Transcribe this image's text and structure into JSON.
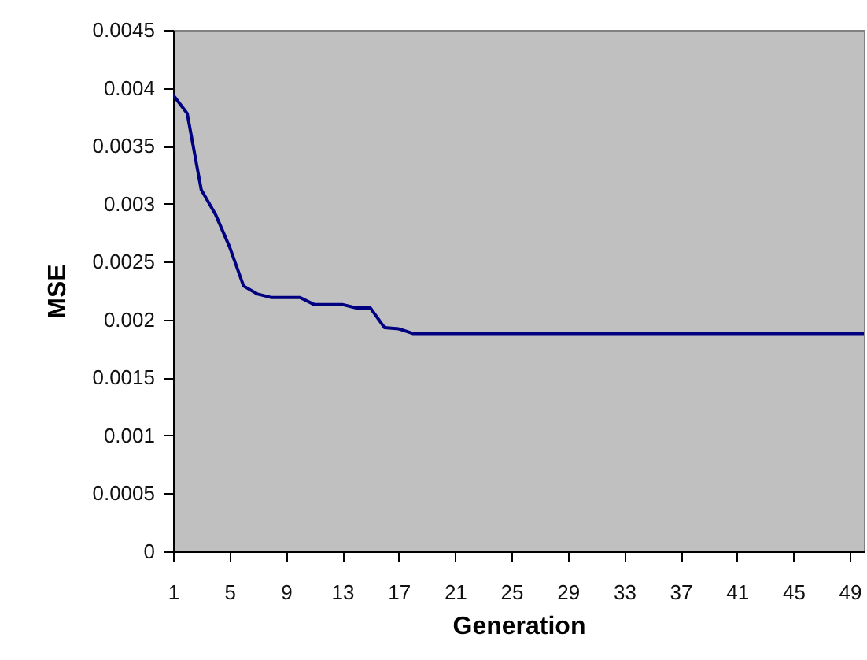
{
  "chart_data": {
    "type": "line",
    "xlabel": "Generation",
    "ylabel": "MSE",
    "x": [
      1,
      2,
      3,
      4,
      5,
      6,
      7,
      8,
      9,
      10,
      11,
      12,
      13,
      14,
      15,
      16,
      17,
      18,
      19,
      20,
      21,
      22,
      23,
      24,
      25,
      26,
      27,
      28,
      29,
      30,
      31,
      32,
      33,
      34,
      35,
      36,
      37,
      38,
      39,
      40,
      41,
      42,
      43,
      44,
      45,
      46,
      47,
      48,
      49,
      50
    ],
    "series": [
      {
        "color": "#000080",
        "values": [
          0.00394,
          0.00378,
          0.00312,
          0.00291,
          0.00263,
          0.00229,
          0.00222,
          0.00219,
          0.00219,
          0.00219,
          0.00213,
          0.00213,
          0.00213,
          0.0021,
          0.0021,
          0.00193,
          0.00192,
          0.00188,
          0.00188,
          0.00188,
          0.00188,
          0.00188,
          0.00188,
          0.00188,
          0.00188,
          0.00188,
          0.00188,
          0.00188,
          0.00188,
          0.00188,
          0.00188,
          0.00188,
          0.00188,
          0.00188,
          0.00188,
          0.00188,
          0.00188,
          0.00188,
          0.00188,
          0.00188,
          0.00188,
          0.00188,
          0.00188,
          0.00188,
          0.00188,
          0.00188,
          0.00188,
          0.00188,
          0.00188,
          0.00188
        ]
      }
    ],
    "xlim": [
      1,
      50
    ],
    "xticks": [
      1,
      5,
      9,
      13,
      17,
      21,
      25,
      29,
      33,
      37,
      41,
      45,
      49
    ],
    "ylim": [
      0,
      0.0045
    ],
    "yticks": [
      0,
      0.0005,
      0.001,
      0.0015,
      0.002,
      0.0025,
      0.003,
      0.0035,
      0.004,
      0.0045
    ]
  }
}
